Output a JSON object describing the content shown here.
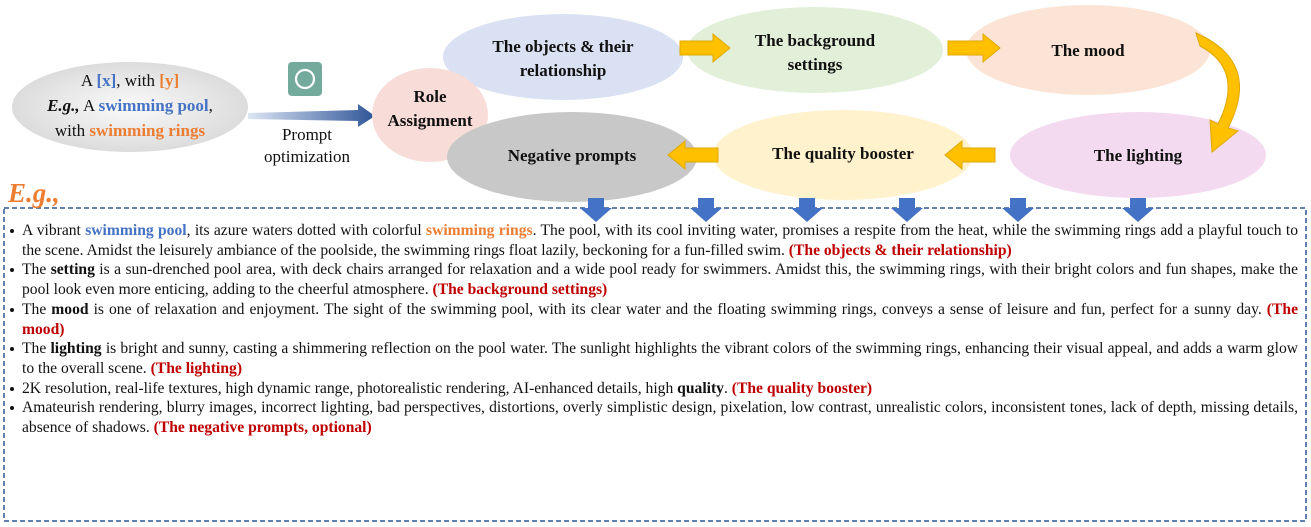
{
  "input": {
    "lines": [
      [
        "A ",
        "[x]",
        ", with ",
        "[y]"
      ],
      [
        "E.g.,",
        " A ",
        "swimming pool",
        ","
      ],
      [
        "with ",
        "swimming rings"
      ]
    ]
  },
  "optimizer": {
    "label_lines": [
      "Prompt",
      "optimization"
    ]
  },
  "nodes": [
    {
      "label_lines": [
        "Role",
        "Assignment"
      ]
    },
    {
      "label_lines": [
        "The objects & their",
        "relationship"
      ]
    },
    {
      "label_lines": [
        "The background",
        "settings"
      ]
    },
    {
      "label_lines": [
        "The mood"
      ]
    },
    {
      "label_lines": [
        "The lighting"
      ]
    },
    {
      "label_lines": [
        "The quality booster"
      ]
    },
    {
      "label_lines": [
        "Negative prompts"
      ]
    }
  ],
  "example": {
    "label": "E.g.,",
    "items": [
      [
        "A vibrant ",
        "swimming pool",
        ", its azure waters dotted with colorful ",
        "swimming rings",
        ". The pool, with its cool inviting water, promises a respite from the heat, while the swimming rings add a playful touch to the scene. Amidst the leisurely ambiance of the poolside, the swimming rings float lazily, beckoning for a fun-filled swim. ",
        "(The objects & their relationship)"
      ],
      [
        "The ",
        "setting",
        " is a sun-drenched pool area, with deck chairs arranged for relaxation and a wide pool ready for swimmers. Amidst this, the swimming rings, with their bright colors and fun shapes, make the pool look even more enticing, adding to the cheerful atmosphere. ",
        "(The background settings)"
      ],
      [
        "The ",
        "mood",
        " is one of relaxation and enjoyment. The sight of the swimming pool, with its clear water and the floating swimming rings, conveys a sense of leisure and fun, perfect for a sunny day. ",
        "(The mood)"
      ],
      [
        "The ",
        "lighting",
        " is bright and sunny, casting a shimmering reflection on the pool water. The sunlight highlights the vibrant colors of the swimming rings, enhancing their visual appeal, and adds a warm glow to the overall scene. ",
        "(The lighting)"
      ],
      [
        "2K resolution, real-life textures, high dynamic range, photorealistic rendering, AI-enhanced details, high ",
        "quality",
        ". ",
        "(The quality booster)"
      ],
      [
        "Amateurish rendering, blurry images, incorrect lighting, bad perspectives, distortions, overly simplistic design, pixelation, low contrast, unrealistic colors, inconsistent tones, lack of depth, missing details, absence of shadows. ",
        "(The negative prompts, optional)"
      ]
    ]
  }
}
